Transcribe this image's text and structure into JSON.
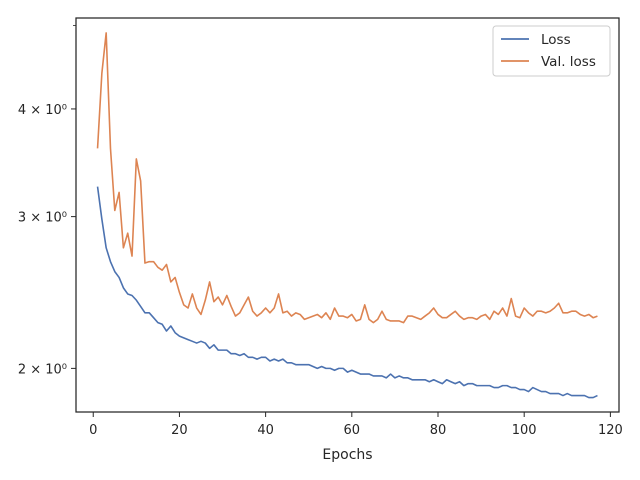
{
  "chart_data": {
    "type": "line",
    "title": "",
    "xlabel": "Epochs",
    "ylabel": "",
    "xlim": [
      -4,
      122
    ],
    "ylim": [
      1.78,
      5.1
    ],
    "yscale": "log",
    "grid": false,
    "legend": "top-right",
    "x_ticks": [
      0,
      20,
      40,
      60,
      80,
      100,
      120
    ],
    "y_ticks": [
      {
        "value": 2,
        "label": "2 × 10⁰"
      },
      {
        "value": 3,
        "label": "3 × 10⁰"
      },
      {
        "value": 4,
        "label": "4 × 10⁰"
      }
    ],
    "series": [
      {
        "name": "Loss",
        "color": "#4c72b0",
        "x": [
          1,
          2,
          3,
          4,
          5,
          6,
          7,
          8,
          9,
          10,
          11,
          12,
          13,
          14,
          15,
          16,
          17,
          18,
          19,
          20,
          21,
          22,
          23,
          24,
          25,
          26,
          27,
          28,
          29,
          30,
          31,
          32,
          33,
          34,
          35,
          36,
          37,
          38,
          39,
          40,
          41,
          42,
          43,
          44,
          45,
          46,
          47,
          48,
          49,
          50,
          51,
          52,
          53,
          54,
          55,
          56,
          57,
          58,
          59,
          60,
          61,
          62,
          63,
          64,
          65,
          66,
          67,
          68,
          69,
          70,
          71,
          72,
          73,
          74,
          75,
          76,
          77,
          78,
          79,
          80,
          81,
          82,
          83,
          84,
          85,
          86,
          87,
          88,
          89,
          90,
          91,
          92,
          93,
          94,
          95,
          96,
          97,
          98,
          99,
          100,
          101,
          102,
          103,
          104,
          105,
          106,
          107,
          108,
          109,
          110,
          111,
          112,
          113,
          114,
          115,
          116,
          117
        ],
        "values": [
          3.25,
          2.98,
          2.76,
          2.66,
          2.59,
          2.55,
          2.48,
          2.44,
          2.43,
          2.4,
          2.36,
          2.32,
          2.32,
          2.29,
          2.26,
          2.25,
          2.21,
          2.24,
          2.2,
          2.18,
          2.17,
          2.16,
          2.15,
          2.14,
          2.15,
          2.14,
          2.11,
          2.13,
          2.1,
          2.1,
          2.1,
          2.08,
          2.08,
          2.07,
          2.08,
          2.06,
          2.06,
          2.05,
          2.06,
          2.06,
          2.04,
          2.05,
          2.04,
          2.05,
          2.03,
          2.03,
          2.02,
          2.02,
          2.02,
          2.02,
          2.01,
          2.0,
          2.01,
          2.0,
          2.0,
          1.99,
          2.0,
          2.0,
          1.98,
          1.99,
          1.98,
          1.97,
          1.97,
          1.97,
          1.96,
          1.96,
          1.96,
          1.95,
          1.97,
          1.95,
          1.96,
          1.95,
          1.95,
          1.94,
          1.94,
          1.94,
          1.94,
          1.93,
          1.94,
          1.93,
          1.92,
          1.94,
          1.93,
          1.92,
          1.93,
          1.91,
          1.92,
          1.92,
          1.91,
          1.91,
          1.91,
          1.91,
          1.9,
          1.9,
          1.91,
          1.91,
          1.9,
          1.9,
          1.89,
          1.89,
          1.88,
          1.9,
          1.89,
          1.88,
          1.88,
          1.87,
          1.87,
          1.87,
          1.86,
          1.87,
          1.86,
          1.86,
          1.86,
          1.86,
          1.85,
          1.85,
          1.86
        ]
      },
      {
        "name": "Val. loss",
        "color": "#dd8452",
        "x": [
          1,
          2,
          3,
          4,
          5,
          6,
          7,
          8,
          9,
          10,
          11,
          12,
          13,
          14,
          15,
          16,
          17,
          18,
          19,
          20,
          21,
          22,
          23,
          24,
          25,
          26,
          27,
          28,
          29,
          30,
          31,
          32,
          33,
          34,
          35,
          36,
          37,
          38,
          39,
          40,
          41,
          42,
          43,
          44,
          45,
          46,
          47,
          48,
          49,
          50,
          51,
          52,
          53,
          54,
          55,
          56,
          57,
          58,
          59,
          60,
          61,
          62,
          63,
          64,
          65,
          66,
          67,
          68,
          69,
          70,
          71,
          72,
          73,
          74,
          75,
          76,
          77,
          78,
          79,
          80,
          81,
          82,
          83,
          84,
          85,
          86,
          87,
          88,
          89,
          90,
          91,
          92,
          93,
          94,
          95,
          96,
          97,
          98,
          99,
          100,
          101,
          102,
          103,
          104,
          105,
          106,
          107,
          108,
          109,
          110,
          111,
          112,
          113,
          114,
          115,
          116,
          117
        ],
        "values": [
          3.6,
          4.4,
          4.9,
          3.6,
          3.05,
          3.2,
          2.76,
          2.87,
          2.7,
          3.5,
          3.3,
          2.65,
          2.66,
          2.66,
          2.62,
          2.6,
          2.64,
          2.52,
          2.55,
          2.45,
          2.37,
          2.35,
          2.44,
          2.35,
          2.31,
          2.4,
          2.52,
          2.39,
          2.42,
          2.37,
          2.43,
          2.36,
          2.3,
          2.32,
          2.37,
          2.42,
          2.33,
          2.3,
          2.32,
          2.35,
          2.32,
          2.35,
          2.44,
          2.32,
          2.33,
          2.3,
          2.32,
          2.31,
          2.28,
          2.29,
          2.3,
          2.31,
          2.29,
          2.32,
          2.28,
          2.35,
          2.3,
          2.3,
          2.29,
          2.31,
          2.27,
          2.28,
          2.37,
          2.28,
          2.26,
          2.28,
          2.33,
          2.28,
          2.27,
          2.27,
          2.27,
          2.26,
          2.3,
          2.3,
          2.29,
          2.28,
          2.3,
          2.32,
          2.35,
          2.31,
          2.29,
          2.29,
          2.31,
          2.33,
          2.3,
          2.28,
          2.29,
          2.29,
          2.28,
          2.3,
          2.31,
          2.28,
          2.33,
          2.31,
          2.35,
          2.3,
          2.41,
          2.3,
          2.29,
          2.35,
          2.32,
          2.3,
          2.33,
          2.33,
          2.32,
          2.33,
          2.35,
          2.38,
          2.32,
          2.32,
          2.33,
          2.33,
          2.31,
          2.3,
          2.31,
          2.29,
          2.3
        ]
      }
    ]
  }
}
